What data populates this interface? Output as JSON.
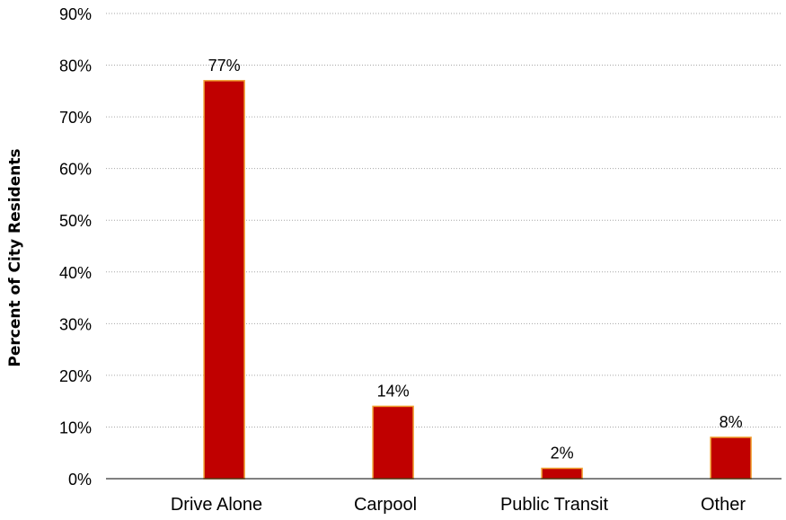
{
  "chart_data": {
    "type": "bar",
    "categories": [
      "Drive Alone",
      "Carpool",
      "Public Transit",
      "Other"
    ],
    "values": [
      77,
      14,
      2,
      8
    ],
    "data_labels": [
      "77%",
      "14%",
      "2%",
      "8%"
    ],
    "title": "",
    "xlabel": "",
    "ylabel": "Percent of City Residents",
    "ylim": [
      0,
      90
    ],
    "yticks": [
      0,
      10,
      20,
      30,
      40,
      50,
      60,
      70,
      80,
      90
    ],
    "ytick_labels": [
      "0%",
      "10%",
      "20%",
      "30%",
      "40%",
      "50%",
      "60%",
      "70%",
      "80%",
      "90%"
    ],
    "grid": true,
    "legend": "none",
    "colors": {
      "bar_fill": "#c00000",
      "bar_edge": "#f0a030",
      "gridline": "#a6a6a6",
      "axis": "#000000"
    }
  }
}
